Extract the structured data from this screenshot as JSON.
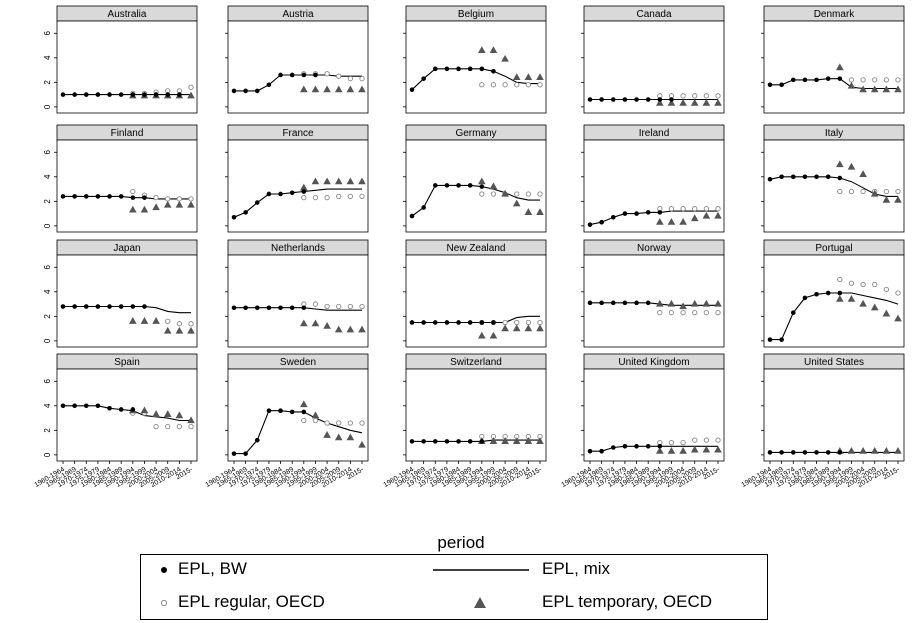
{
  "chart_data": {
    "type": "line",
    "title": "",
    "xlabel": "period",
    "ylabel": "",
    "ylim": [
      -0.5,
      7
    ],
    "yticks": [
      0,
      2,
      4,
      6
    ],
    "categories": [
      "1960-1964",
      "1965-1969",
      "1970-1974",
      "1975-1979",
      "1980-1984",
      "1985-1989",
      "1990-1994",
      "1995-1999",
      "2000-2004",
      "2005-2009",
      "2010-2014",
      "2015-"
    ],
    "legend": {
      "placement": "bottom",
      "entries": [
        "EPL, BW",
        "EPL, mix",
        "EPL regular, OECD",
        "EPL temporary, OECD"
      ]
    },
    "panels": [
      {
        "name": "Australia",
        "bw": [
          1,
          1,
          1,
          1,
          1,
          1,
          1,
          1,
          1,
          1,
          1,
          null
        ],
        "mix": [
          1,
          1,
          1,
          1,
          1,
          1,
          1,
          1,
          1,
          1,
          1,
          1
        ],
        "reg": [
          null,
          null,
          null,
          null,
          null,
          null,
          1.1,
          1.1,
          1.2,
          1.3,
          1.3,
          1.6
        ],
        "temp": [
          null,
          null,
          null,
          null,
          null,
          null,
          0.9,
          0.9,
          0.9,
          0.9,
          0.9,
          0.9
        ]
      },
      {
        "name": "Austria",
        "bw": [
          1.3,
          1.3,
          1.3,
          1.8,
          2.6,
          2.6,
          2.6,
          2.6,
          null,
          null,
          null,
          null
        ],
        "mix": [
          1.3,
          1.3,
          1.3,
          1.8,
          2.6,
          2.6,
          2.6,
          2.6,
          2.6,
          2.5,
          2.5,
          2.5
        ],
        "reg": [
          null,
          null,
          null,
          null,
          null,
          null,
          2.7,
          2.7,
          2.7,
          2.5,
          2.3,
          2.3
        ],
        "temp": [
          null,
          null,
          null,
          null,
          null,
          null,
          1.4,
          1.4,
          1.4,
          1.4,
          1.4,
          1.4
        ]
      },
      {
        "name": "Belgium",
        "bw": [
          1.4,
          2.3,
          3.1,
          3.1,
          3.1,
          3.1,
          3.1,
          2.9,
          null,
          null,
          null,
          null
        ],
        "mix": [
          1.4,
          2.3,
          3.1,
          3.1,
          3.1,
          3.1,
          3.1,
          2.9,
          2.5,
          2.0,
          1.9,
          1.9
        ],
        "reg": [
          null,
          null,
          null,
          null,
          null,
          null,
          1.8,
          1.8,
          1.8,
          1.8,
          1.8,
          1.8
        ],
        "temp": [
          null,
          null,
          null,
          null,
          null,
          null,
          4.6,
          4.6,
          3.9,
          2.4,
          2.4,
          2.4
        ]
      },
      {
        "name": "Canada",
        "bw": [
          0.6,
          0.6,
          0.6,
          0.6,
          0.6,
          0.6,
          0.6,
          0.6,
          null,
          null,
          null,
          null
        ],
        "mix": [
          0.6,
          0.6,
          0.6,
          0.6,
          0.6,
          0.6,
          0.6,
          0.6,
          0.6,
          0.6,
          0.6,
          0.6
        ],
        "reg": [
          null,
          null,
          null,
          null,
          null,
          null,
          0.9,
          0.9,
          0.9,
          0.9,
          0.9,
          0.9
        ],
        "temp": [
          null,
          null,
          null,
          null,
          null,
          null,
          0.3,
          0.3,
          0.3,
          0.3,
          0.3,
          0.3
        ]
      },
      {
        "name": "Denmark",
        "bw": [
          1.8,
          1.8,
          2.2,
          2.2,
          2.2,
          2.3,
          2.3,
          null,
          null,
          null,
          null,
          null
        ],
        "mix": [
          1.8,
          1.8,
          2.2,
          2.2,
          2.2,
          2.3,
          2.3,
          1.6,
          1.5,
          1.5,
          1.5,
          1.5
        ],
        "reg": [
          null,
          null,
          null,
          null,
          null,
          null,
          null,
          2.2,
          2.2,
          2.2,
          2.2,
          2.2
        ],
        "temp": [
          null,
          null,
          null,
          null,
          null,
          null,
          3.2,
          1.7,
          1.4,
          1.4,
          1.4,
          1.4
        ]
      },
      {
        "name": "Finland",
        "bw": [
          2.4,
          2.4,
          2.4,
          2.4,
          2.4,
          2.4,
          2.3,
          2.3,
          null,
          null,
          null,
          null
        ],
        "mix": [
          2.4,
          2.4,
          2.4,
          2.4,
          2.4,
          2.4,
          2.3,
          2.3,
          2.2,
          2.2,
          2.2,
          2.2
        ],
        "reg": [
          null,
          null,
          null,
          null,
          null,
          null,
          2.8,
          2.5,
          2.3,
          2.2,
          2.2,
          2.2
        ],
        "temp": [
          null,
          null,
          null,
          null,
          null,
          null,
          1.3,
          1.3,
          1.5,
          1.7,
          1.7,
          1.7
        ]
      },
      {
        "name": "France",
        "bw": [
          0.7,
          1.1,
          1.9,
          2.6,
          2.6,
          2.7,
          2.8,
          null,
          null,
          null,
          null,
          null
        ],
        "mix": [
          0.7,
          1.1,
          1.9,
          2.6,
          2.6,
          2.7,
          2.8,
          2.9,
          3.0,
          3.0,
          3.0,
          3.0
        ],
        "reg": [
          null,
          null,
          null,
          null,
          null,
          null,
          2.3,
          2.3,
          2.3,
          2.4,
          2.4,
          2.4
        ],
        "temp": [
          null,
          null,
          null,
          null,
          null,
          null,
          3.1,
          3.6,
          3.6,
          3.6,
          3.6,
          3.6
        ]
      },
      {
        "name": "Germany",
        "bw": [
          0.8,
          1.5,
          3.3,
          3.3,
          3.3,
          3.3,
          3.2,
          null,
          null,
          null,
          null,
          null
        ],
        "mix": [
          0.8,
          1.5,
          3.3,
          3.3,
          3.3,
          3.3,
          3.2,
          3.0,
          2.7,
          2.3,
          2.1,
          2.1
        ],
        "reg": [
          null,
          null,
          null,
          null,
          null,
          null,
          2.6,
          2.6,
          2.6,
          2.6,
          2.6,
          2.6
        ],
        "temp": [
          null,
          null,
          null,
          null,
          null,
          null,
          3.6,
          3.2,
          2.6,
          1.8,
          1.1,
          1.1
        ]
      },
      {
        "name": "Ireland",
        "bw": [
          0.1,
          0.3,
          0.7,
          1.0,
          1.0,
          1.1,
          1.1,
          null,
          null,
          null,
          null,
          null
        ],
        "mix": [
          0.1,
          0.3,
          0.7,
          1.0,
          1.0,
          1.1,
          1.1,
          1.2,
          1.2,
          1.2,
          1.2,
          1.2
        ],
        "reg": [
          null,
          null,
          null,
          null,
          null,
          null,
          1.4,
          1.4,
          1.4,
          1.4,
          1.4,
          1.4
        ],
        "temp": [
          null,
          null,
          null,
          null,
          null,
          null,
          0.3,
          0.3,
          0.3,
          0.6,
          0.8,
          0.8
        ]
      },
      {
        "name": "Italy",
        "bw": [
          3.8,
          4.0,
          4.0,
          4.0,
          4.0,
          4.0,
          3.9,
          null,
          null,
          null,
          null,
          null
        ],
        "mix": [
          3.8,
          4.0,
          4.0,
          4.0,
          4.0,
          4.0,
          3.9,
          3.6,
          3.1,
          2.6,
          2.4,
          2.4
        ],
        "reg": [
          null,
          null,
          null,
          null,
          null,
          null,
          2.8,
          2.8,
          2.8,
          2.8,
          2.8,
          2.8
        ],
        "temp": [
          null,
          null,
          null,
          null,
          null,
          null,
          5.0,
          4.8,
          4.2,
          2.6,
          2.1,
          2.1
        ]
      },
      {
        "name": "Japan",
        "bw": [
          2.8,
          2.8,
          2.8,
          2.8,
          2.8,
          2.8,
          2.8,
          2.8,
          null,
          null,
          null,
          null
        ],
        "mix": [
          2.8,
          2.8,
          2.8,
          2.8,
          2.8,
          2.8,
          2.8,
          2.8,
          2.7,
          2.4,
          2.3,
          2.3
        ],
        "reg": [
          null,
          null,
          null,
          null,
          null,
          null,
          null,
          null,
          null,
          1.6,
          1.4,
          1.4
        ],
        "temp": [
          null,
          null,
          null,
          null,
          null,
          null,
          1.6,
          1.6,
          1.6,
          0.8,
          0.8,
          0.8
        ]
      },
      {
        "name": "Netherlands",
        "bw": [
          2.7,
          2.7,
          2.7,
          2.7,
          2.7,
          2.7,
          2.7,
          null,
          null,
          null,
          null,
          null
        ],
        "mix": [
          2.7,
          2.7,
          2.7,
          2.7,
          2.7,
          2.7,
          2.7,
          2.6,
          2.5,
          2.5,
          2.5,
          2.5
        ],
        "reg": [
          null,
          null,
          null,
          null,
          null,
          null,
          3.0,
          3.0,
          2.8,
          2.8,
          2.8,
          2.8
        ],
        "temp": [
          null,
          null,
          null,
          null,
          null,
          null,
          1.4,
          1.4,
          1.2,
          0.9,
          0.9,
          0.9
        ]
      },
      {
        "name": "New Zealand",
        "bw": [
          1.5,
          1.5,
          1.5,
          1.5,
          1.5,
          1.5,
          1.5,
          1.5,
          null,
          null,
          null,
          null
        ],
        "mix": [
          1.5,
          1.5,
          1.5,
          1.5,
          1.5,
          1.5,
          1.5,
          1.5,
          1.5,
          1.9,
          2.0,
          2.0
        ],
        "reg": [
          null,
          null,
          null,
          null,
          null,
          null,
          1.5,
          1.5,
          1.5,
          1.5,
          1.5,
          1.5
        ],
        "temp": [
          null,
          null,
          null,
          null,
          null,
          null,
          0.4,
          0.4,
          1.0,
          1.0,
          1.0,
          1.0
        ]
      },
      {
        "name": "Norway",
        "bw": [
          3.1,
          3.1,
          3.1,
          3.1,
          3.1,
          3.1,
          null,
          null,
          null,
          null,
          null,
          null
        ],
        "mix": [
          3.1,
          3.1,
          3.1,
          3.1,
          3.1,
          3.1,
          3.0,
          2.9,
          2.9,
          2.9,
          2.9,
          2.9
        ],
        "reg": [
          null,
          null,
          null,
          null,
          null,
          null,
          2.3,
          2.3,
          2.3,
          2.3,
          2.3,
          2.3
        ],
        "temp": [
          null,
          null,
          null,
          null,
          null,
          null,
          3.0,
          3.0,
          2.8,
          3.0,
          3.0,
          3.0
        ]
      },
      {
        "name": "Portugal",
        "bw": [
          0.1,
          0.1,
          2.3,
          3.5,
          3.8,
          3.9,
          3.9,
          null,
          null,
          null,
          null,
          null
        ],
        "mix": [
          0.1,
          0.1,
          2.3,
          3.5,
          3.8,
          3.9,
          3.9,
          3.9,
          3.7,
          3.5,
          3.3,
          3.0
        ],
        "reg": [
          null,
          null,
          null,
          null,
          null,
          null,
          5.0,
          4.7,
          4.6,
          4.6,
          4.2,
          3.9
        ],
        "temp": [
          null,
          null,
          null,
          null,
          null,
          null,
          3.4,
          3.4,
          3.0,
          2.7,
          2.2,
          1.8
        ]
      },
      {
        "name": "Spain",
        "bw": [
          4.0,
          4.0,
          4.0,
          4.0,
          3.8,
          3.7,
          3.7,
          null,
          null,
          null,
          null,
          null
        ],
        "mix": [
          4.0,
          4.0,
          4.0,
          4.0,
          3.8,
          3.7,
          3.6,
          3.2,
          3.1,
          3.0,
          2.8,
          2.8
        ],
        "reg": [
          null,
          null,
          null,
          null,
          null,
          null,
          3.4,
          3.4,
          2.3,
          2.3,
          2.3,
          2.3
        ],
        "temp": [
          null,
          null,
          null,
          null,
          null,
          null,
          3.6,
          3.6,
          3.3,
          3.3,
          3.2,
          2.8
        ]
      },
      {
        "name": "Sweden",
        "bw": [
          0.1,
          0.1,
          1.2,
          3.6,
          3.6,
          3.5,
          3.5,
          null,
          null,
          null,
          null,
          null
        ],
        "mix": [
          0.1,
          0.1,
          1.2,
          3.6,
          3.6,
          3.5,
          3.5,
          3.0,
          2.6,
          2.3,
          2.0,
          1.8
        ],
        "reg": [
          null,
          null,
          null,
          null,
          null,
          null,
          2.8,
          2.8,
          2.6,
          2.6,
          2.6,
          2.6
        ],
        "temp": [
          null,
          null,
          null,
          null,
          null,
          null,
          4.1,
          3.2,
          1.6,
          1.4,
          1.4,
          0.8
        ]
      },
      {
        "name": "Switzerland",
        "bw": [
          1.1,
          1.1,
          1.1,
          1.1,
          1.1,
          1.1,
          1.1,
          null,
          null,
          null,
          null,
          null
        ],
        "mix": [
          1.1,
          1.1,
          1.1,
          1.1,
          1.1,
          1.1,
          1.1,
          1.2,
          1.2,
          1.2,
          1.2,
          1.2
        ],
        "reg": [
          null,
          null,
          null,
          null,
          null,
          null,
          1.5,
          1.5,
          1.5,
          1.5,
          1.5,
          1.5
        ],
        "temp": [
          null,
          null,
          null,
          null,
          null,
          null,
          1.1,
          1.1,
          1.1,
          1.1,
          1.1,
          1.1
        ]
      },
      {
        "name": "United Kingdom",
        "bw": [
          0.3,
          0.3,
          0.6,
          0.7,
          0.7,
          0.7,
          0.7,
          null,
          null,
          null,
          null,
          null
        ],
        "mix": [
          0.3,
          0.3,
          0.6,
          0.7,
          0.7,
          0.7,
          0.7,
          0.7,
          0.7,
          0.7,
          0.7,
          0.7
        ],
        "reg": [
          null,
          null,
          null,
          null,
          null,
          null,
          1.0,
          1.0,
          1.0,
          1.2,
          1.2,
          1.2
        ],
        "temp": [
          null,
          null,
          null,
          null,
          null,
          null,
          0.3,
          0.3,
          0.3,
          0.4,
          0.4,
          0.4
        ]
      },
      {
        "name": "United States",
        "bw": [
          0.2,
          0.2,
          0.2,
          0.2,
          0.2,
          0.2,
          0.2,
          null,
          null,
          null,
          null,
          null
        ],
        "mix": [
          0.2,
          0.2,
          0.2,
          0.2,
          0.2,
          0.2,
          0.2,
          0.2,
          0.2,
          0.2,
          0.2,
          0.2
        ],
        "reg": [
          null,
          null,
          null,
          null,
          null,
          null,
          null,
          null,
          null,
          null,
          null,
          null
        ],
        "temp": [
          null,
          null,
          null,
          null,
          null,
          null,
          0.3,
          0.3,
          0.3,
          0.3,
          0.3,
          0.3
        ]
      }
    ]
  }
}
